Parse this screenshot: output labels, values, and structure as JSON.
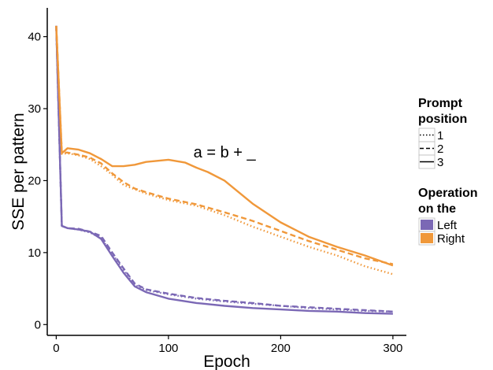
{
  "chart_data": {
    "type": "line",
    "title": "",
    "xlabel": "Epoch",
    "ylabel": "SSE per pattern",
    "xlim": [
      -8,
      312
    ],
    "ylim": [
      -1.5,
      44
    ],
    "xticks": [
      0,
      100,
      200,
      300
    ],
    "yticks": [
      0,
      10,
      20,
      30,
      40
    ],
    "grid": false,
    "annotation": {
      "text": "a = b + _",
      "x": 150,
      "y": 23.2
    },
    "legend": {
      "placement": "right",
      "linetype_title": [
        "Prompt",
        "position"
      ],
      "linetype_entries": [
        {
          "label": "1",
          "dash": "dotted"
        },
        {
          "label": "2",
          "dash": "dashed"
        },
        {
          "label": "3",
          "dash": "solid"
        }
      ],
      "color_title": [
        "Operation",
        "on the"
      ],
      "color_entries": [
        {
          "label": "Left",
          "color": "#7b68b5"
        },
        {
          "label": "Right",
          "color": "#f0983a"
        }
      ]
    },
    "series": [
      {
        "name": "Left / 1",
        "operation": "Left",
        "position": "1",
        "color": "#7b68b5",
        "dash": "dotted",
        "x": [
          0,
          5,
          10,
          20,
          30,
          40,
          50,
          60,
          70,
          80,
          100,
          125,
          150,
          175,
          200,
          225,
          250,
          275,
          300
        ],
        "y": [
          41.5,
          13.7,
          13.4,
          13.2,
          12.8,
          12.0,
          9.8,
          7.6,
          5.5,
          4.8,
          4.2,
          3.6,
          3.2,
          2.9,
          2.6,
          2.3,
          2.1,
          1.9,
          1.8
        ]
      },
      {
        "name": "Left / 2",
        "operation": "Left",
        "position": "2",
        "color": "#7b68b5",
        "dash": "dashed",
        "x": [
          0,
          5,
          10,
          20,
          30,
          40,
          50,
          60,
          70,
          80,
          100,
          125,
          150,
          175,
          200,
          225,
          250,
          275,
          300
        ],
        "y": [
          41.5,
          13.7,
          13.4,
          13.3,
          12.9,
          12.3,
          10.0,
          7.8,
          5.7,
          4.9,
          4.3,
          3.7,
          3.3,
          3.0,
          2.6,
          2.4,
          2.2,
          2.0,
          1.8
        ]
      },
      {
        "name": "Left / 3",
        "operation": "Left",
        "position": "3",
        "color": "#7b68b5",
        "dash": "solid",
        "x": [
          0,
          5,
          10,
          20,
          30,
          40,
          50,
          60,
          70,
          80,
          100,
          125,
          150,
          175,
          200,
          225,
          250,
          275,
          300
        ],
        "y": [
          41.5,
          13.7,
          13.4,
          13.2,
          12.9,
          11.9,
          9.5,
          7.2,
          5.3,
          4.5,
          3.6,
          3.0,
          2.6,
          2.3,
          2.1,
          1.9,
          1.8,
          1.6,
          1.5
        ]
      },
      {
        "name": "Right / 1",
        "operation": "Right",
        "position": "1",
        "color": "#f0983a",
        "dash": "dotted",
        "x": [
          0,
          5,
          10,
          20,
          30,
          40,
          50,
          60,
          70,
          80,
          100,
          125,
          150,
          175,
          200,
          225,
          250,
          275,
          300
        ],
        "y": [
          41.5,
          23.7,
          23.8,
          23.5,
          23.0,
          22.0,
          20.8,
          19.4,
          18.8,
          18.2,
          17.3,
          16.5,
          15.2,
          13.6,
          12.2,
          10.8,
          9.6,
          8.1,
          7.0
        ]
      },
      {
        "name": "Right / 2",
        "operation": "Right",
        "position": "2",
        "color": "#f0983a",
        "dash": "dashed",
        "x": [
          0,
          5,
          10,
          20,
          30,
          40,
          50,
          60,
          70,
          80,
          100,
          125,
          150,
          175,
          200,
          225,
          250,
          275,
          300
        ],
        "y": [
          41.5,
          23.9,
          23.9,
          23.6,
          23.2,
          22.4,
          21.0,
          19.8,
          18.9,
          18.4,
          17.5,
          16.7,
          15.6,
          14.4,
          13.0,
          11.6,
          10.4,
          9.2,
          8.4
        ]
      },
      {
        "name": "Right / 3",
        "operation": "Right",
        "position": "3",
        "color": "#f0983a",
        "dash": "solid",
        "x": [
          0,
          5,
          10,
          20,
          30,
          40,
          50,
          60,
          70,
          80,
          100,
          115,
          125,
          135,
          150,
          175,
          200,
          225,
          250,
          275,
          300
        ],
        "y": [
          41.5,
          23.8,
          24.5,
          24.3,
          23.8,
          23.0,
          22.0,
          22.0,
          22.2,
          22.6,
          22.9,
          22.5,
          21.8,
          21.2,
          20.0,
          16.8,
          14.2,
          12.2,
          10.8,
          9.6,
          8.2
        ]
      }
    ]
  }
}
